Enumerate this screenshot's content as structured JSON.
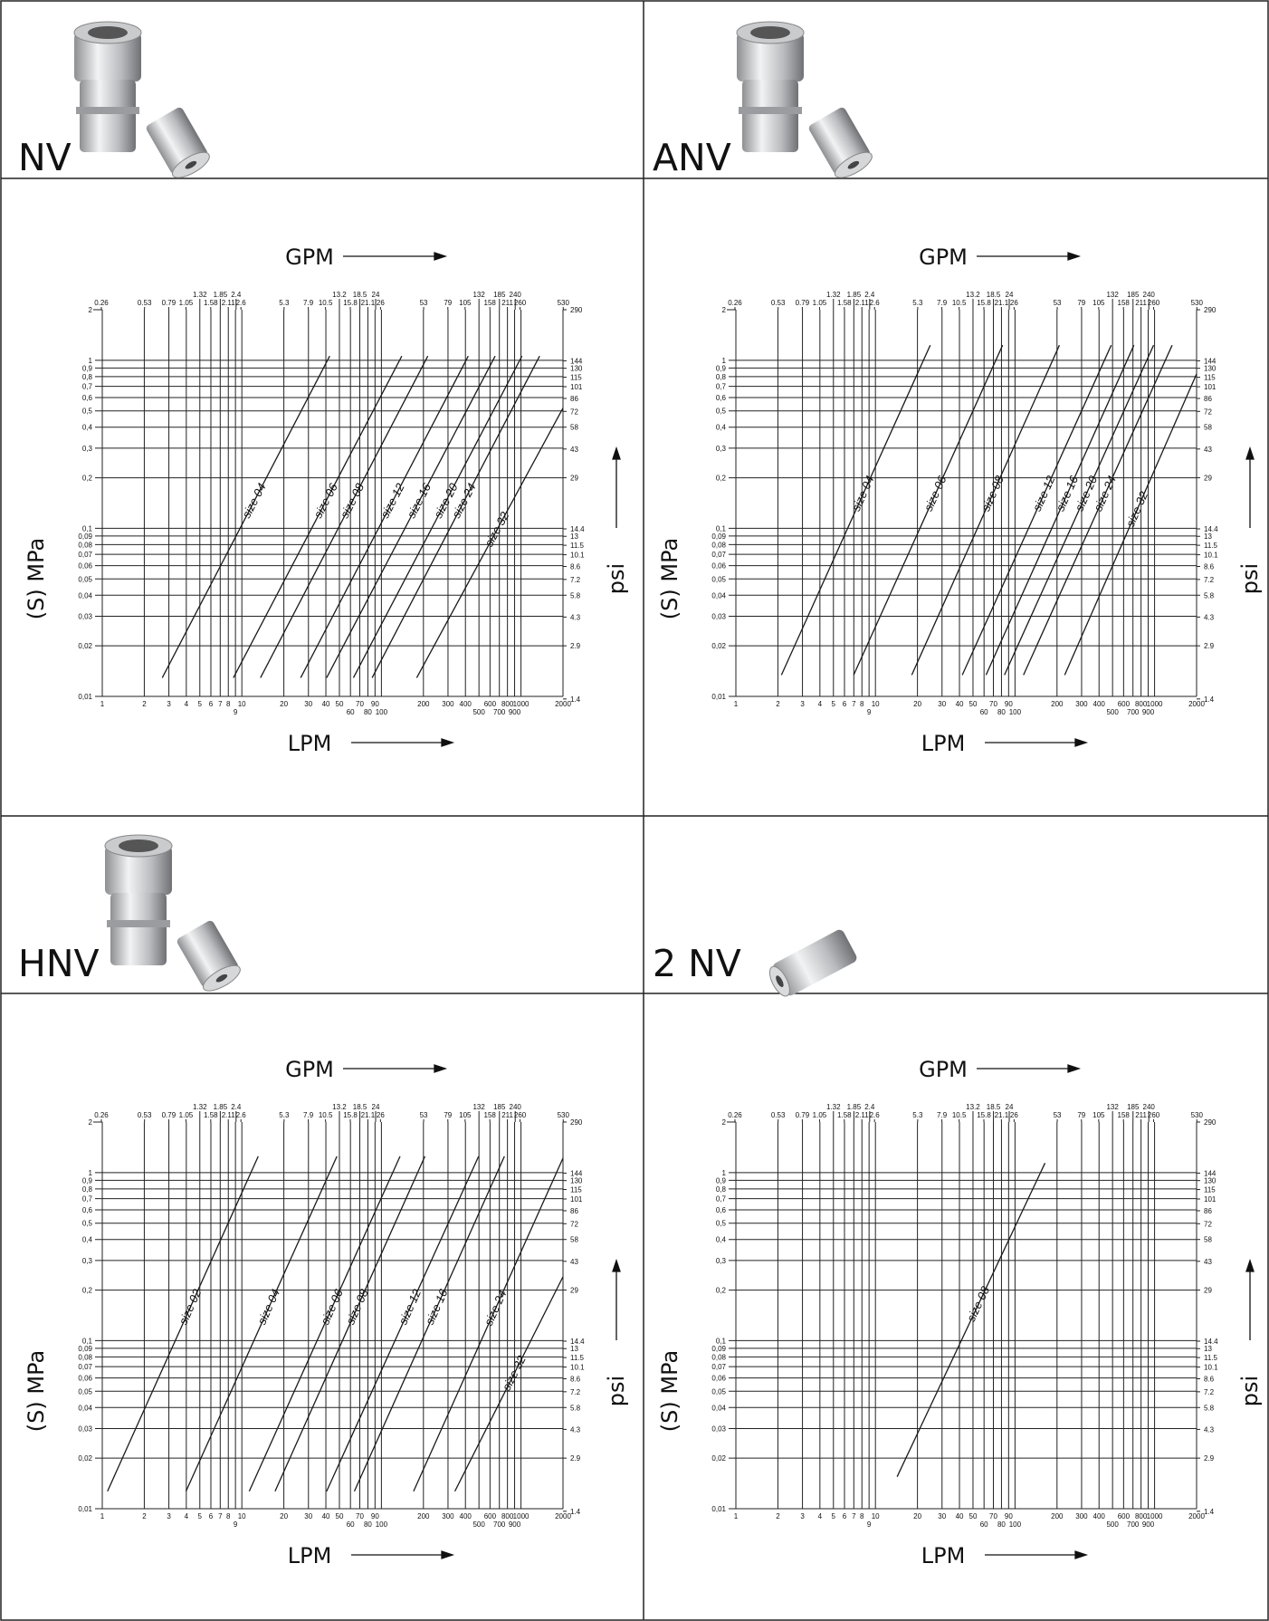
{
  "chart_data": [
    {
      "type": "line",
      "title": "NV",
      "x_label": "LPM",
      "x2_label": "GPM",
      "y_label": "(S) MPa",
      "y2_label": "psi",
      "log_x": true,
      "log_y": true,
      "grid": true,
      "color": "#1a1a1a",
      "xlim": [
        1,
        2000
      ],
      "xticks": [
        1,
        2,
        3,
        4,
        5,
        6,
        7,
        8,
        9,
        10,
        20,
        30,
        40,
        50,
        60,
        70,
        80,
        90,
        100,
        200,
        300,
        400,
        500,
        600,
        700,
        800,
        900,
        1000,
        2000
      ],
      "x2lim": [
        0.264,
        528
      ],
      "x2ticks": [
        0.26,
        0.53,
        0.79,
        1.05,
        1.32,
        1.58,
        1.85,
        2.11,
        2.4,
        2.6,
        5.3,
        7.9,
        10.5,
        13.2,
        15.8,
        18.5,
        21.1,
        24,
        26,
        53,
        79,
        105,
        132,
        158,
        185,
        211,
        240,
        260,
        530
      ],
      "ylim": [
        0.01,
        2
      ],
      "yticks": [
        2,
        1,
        {
          "value": 0.9,
          "label": "0,9"
        },
        {
          "value": 0.8,
          "label": "0,8"
        },
        {
          "value": 0.7,
          "label": "0,7"
        },
        {
          "value": 0.6,
          "label": "0,6"
        },
        {
          "value": 0.5,
          "label": "0,5"
        },
        {
          "value": 0.4,
          "label": "0,4"
        },
        {
          "value": 0.3,
          "label": "0,3"
        },
        {
          "value": 0.2,
          "label": "0,2"
        },
        {
          "value": 0.1,
          "label": "0,1"
        },
        {
          "value": 0.09,
          "label": "0,09"
        },
        {
          "value": 0.08,
          "label": "0,08"
        },
        {
          "value": 0.07,
          "label": "0,07"
        },
        {
          "value": 0.06,
          "label": "0,06"
        },
        {
          "value": 0.05,
          "label": "0,05"
        },
        {
          "value": 0.04,
          "label": "0,04"
        },
        {
          "value": 0.03,
          "label": "0,03"
        },
        {
          "value": 0.02,
          "label": "0,02"
        },
        {
          "value": 0.01,
          "label": "0,01"
        }
      ],
      "y2lim": [
        1.45,
        290
      ],
      "y2ticks": [
        290,
        144,
        130,
        115,
        101,
        86,
        72,
        58,
        43,
        29,
        14.4,
        13,
        11.5,
        10.1,
        8.6,
        7.2,
        5.8,
        4.3,
        2.9,
        1.4
      ],
      "series": [
        {
          "name": "size 04",
          "x": [
            2.69,
            42.6
          ],
          "values": [
            0.0129,
            1.06
          ]
        },
        {
          "name": "size 06",
          "x": [
            8.7,
            140
          ],
          "values": [
            0.0129,
            1.06
          ]
        },
        {
          "name": "size 08",
          "x": [
            13.6,
            215
          ],
          "values": [
            0.0129,
            1.06
          ]
        },
        {
          "name": "size 12",
          "x": [
            26.4,
            419
          ],
          "values": [
            0.0129,
            1.06
          ]
        },
        {
          "name": "size 16",
          "x": [
            40.5,
            653
          ],
          "values": [
            0.0129,
            1.06
          ]
        },
        {
          "name": "size 20",
          "x": [
            63,
            1016
          ],
          "values": [
            0.0129,
            1.06
          ]
        },
        {
          "name": "size 24",
          "x": [
            85.8,
            1360
          ],
          "values": [
            0.0129,
            1.06
          ]
        },
        {
          "name": "size 32",
          "x": [
            179,
            2000
          ],
          "values": [
            0.0129,
            0.52
          ]
        }
      ]
    },
    {
      "type": "line",
      "title": "ANV",
      "x_label": "LPM",
      "x2_label": "GPM",
      "y_label": "(S) MPa",
      "y2_label": "psi",
      "log_x": true,
      "log_y": true,
      "grid": true,
      "color": "#1a1a1a",
      "xlim": [
        1,
        2000
      ],
      "xticks": [
        1,
        2,
        3,
        4,
        5,
        6,
        7,
        8,
        9,
        10,
        20,
        30,
        40,
        50,
        60,
        70,
        80,
        90,
        100,
        200,
        300,
        400,
        500,
        600,
        700,
        800,
        900,
        1000,
        2000
      ],
      "x2lim": [
        0.264,
        528
      ],
      "x2ticks": [
        0.26,
        0.53,
        0.79,
        1.05,
        1.32,
        1.58,
        1.85,
        2.11,
        2.4,
        2.6,
        5.3,
        7.9,
        10.5,
        13.2,
        15.8,
        18.5,
        21.1,
        24,
        26,
        53,
        79,
        105,
        132,
        158,
        185,
        211,
        240,
        260,
        530
      ],
      "ylim": [
        0.01,
        2
      ],
      "yticks": [
        2,
        1,
        {
          "value": 0.9,
          "label": "0,9"
        },
        {
          "value": 0.8,
          "label": "0,8"
        },
        {
          "value": 0.7,
          "label": "0,7"
        },
        {
          "value": 0.6,
          "label": "0,6"
        },
        {
          "value": 0.5,
          "label": "0,5"
        },
        {
          "value": 0.4,
          "label": "0,4"
        },
        {
          "value": 0.3,
          "label": "0,3"
        },
        {
          "value": 0.2,
          "label": "0,2"
        },
        {
          "value": 0.1,
          "label": "0,1"
        },
        {
          "value": 0.09,
          "label": "0,09"
        },
        {
          "value": 0.08,
          "label": "0,08"
        },
        {
          "value": 0.07,
          "label": "0,07"
        },
        {
          "value": 0.06,
          "label": "0,06"
        },
        {
          "value": 0.05,
          "label": "0,05"
        },
        {
          "value": 0.04,
          "label": "0,04"
        },
        {
          "value": 0.03,
          "label": "0,03"
        },
        {
          "value": 0.02,
          "label": "0,02"
        },
        {
          "value": 0.01,
          "label": "0,01"
        }
      ],
      "y2lim": [
        1.45,
        290
      ],
      "y2ticks": [
        290,
        144,
        130,
        115,
        101,
        86,
        72,
        58,
        43,
        29,
        14.4,
        13,
        11.5,
        10.1,
        8.6,
        7.2,
        5.8,
        4.3,
        2.9,
        1.4
      ],
      "series": [
        {
          "name": "size 04",
          "x": [
            2.12,
            24.7
          ],
          "values": [
            0.0134,
            1.23
          ]
        },
        {
          "name": "size 06",
          "x": [
            6.98,
            81.5
          ],
          "values": [
            0.0134,
            1.23
          ]
        },
        {
          "name": "size 08",
          "x": [
            18.2,
            208
          ],
          "values": [
            0.0134,
            1.23
          ]
        },
        {
          "name": "size 12",
          "x": [
            41.9,
            489
          ],
          "values": [
            0.0134,
            1.23
          ]
        },
        {
          "name": "size 16",
          "x": [
            62,
            711
          ],
          "values": [
            0.0134,
            1.23
          ]
        },
        {
          "name": "size 20",
          "x": [
            84,
            984
          ],
          "values": [
            0.0134,
            1.23
          ]
        },
        {
          "name": "size 24",
          "x": [
            115,
            1336
          ],
          "values": [
            0.0134,
            1.23
          ]
        },
        {
          "name": "size 32",
          "x": [
            227,
            2000
          ],
          "values": [
            0.0134,
            0.83
          ]
        }
      ]
    },
    {
      "type": "line",
      "title": "HNV",
      "x_label": "LPM",
      "x2_label": "GPM",
      "y_label": "(S) MPa",
      "y2_label": "psi",
      "log_x": true,
      "log_y": true,
      "grid": true,
      "color": "#1a1a1a",
      "xlim": [
        1,
        2000
      ],
      "xticks": [
        1,
        2,
        3,
        4,
        5,
        6,
        7,
        8,
        9,
        10,
        20,
        30,
        40,
        50,
        60,
        70,
        80,
        90,
        100,
        200,
        300,
        400,
        500,
        600,
        700,
        800,
        900,
        1000,
        2000
      ],
      "x2lim": [
        0.264,
        528
      ],
      "x2ticks": [
        0.26,
        0.53,
        0.79,
        1.05,
        1.32,
        1.58,
        1.85,
        2.11,
        2.4,
        2.6,
        5.3,
        7.9,
        10.5,
        13.2,
        15.8,
        18.5,
        21.1,
        24,
        26,
        53,
        79,
        105,
        132,
        158,
        185,
        211,
        240,
        260,
        530
      ],
      "ylim": [
        0.01,
        2
      ],
      "yticks": [
        2,
        1,
        {
          "value": 0.9,
          "label": "0,9"
        },
        {
          "value": 0.8,
          "label": "0,8"
        },
        {
          "value": 0.7,
          "label": "0,7"
        },
        {
          "value": 0.6,
          "label": "0,6"
        },
        {
          "value": 0.5,
          "label": "0,5"
        },
        {
          "value": 0.4,
          "label": "0,4"
        },
        {
          "value": 0.3,
          "label": "0,3"
        },
        {
          "value": 0.2,
          "label": "0,2"
        },
        {
          "value": 0.1,
          "label": "0,1"
        },
        {
          "value": 0.09,
          "label": "0,09"
        },
        {
          "value": 0.08,
          "label": "0,08"
        },
        {
          "value": 0.07,
          "label": "0,07"
        },
        {
          "value": 0.06,
          "label": "0,06"
        },
        {
          "value": 0.05,
          "label": "0,05"
        },
        {
          "value": 0.04,
          "label": "0,04"
        },
        {
          "value": 0.03,
          "label": "0,03"
        },
        {
          "value": 0.02,
          "label": "0,02"
        },
        {
          "value": 0.01,
          "label": "0,01"
        }
      ],
      "y2lim": [
        1.45,
        290
      ],
      "y2ticks": [
        290,
        144,
        130,
        115,
        101,
        86,
        72,
        58,
        43,
        29,
        14.4,
        13,
        11.5,
        10.1,
        8.6,
        7.2,
        5.8,
        4.3,
        2.9,
        1.4
      ],
      "series": [
        {
          "name": "size 02",
          "x": [
            1.09,
            13.1
          ],
          "values": [
            0.0127,
            1.25
          ]
        },
        {
          "name": "size 04",
          "x": [
            3.98,
            48
          ],
          "values": [
            0.0127,
            1.25
          ]
        },
        {
          "name": "size 06",
          "x": [
            11.3,
            136
          ],
          "values": [
            0.0127,
            1.25
          ]
        },
        {
          "name": "size 08",
          "x": [
            17.3,
            205
          ],
          "values": [
            0.0127,
            1.25
          ]
        },
        {
          "name": "size 12",
          "x": [
            40.5,
            497
          ],
          "values": [
            0.0127,
            1.25
          ]
        },
        {
          "name": "size 16",
          "x": [
            64,
            761
          ],
          "values": [
            0.0127,
            1.25
          ]
        },
        {
          "name": "size 24",
          "x": [
            170,
            2000
          ],
          "values": [
            0.0127,
            1.22
          ]
        },
        {
          "name": "size 32",
          "x": [
            336,
            2000
          ],
          "values": [
            0.0127,
            0.24
          ]
        }
      ]
    },
    {
      "type": "line",
      "title": "2 NV",
      "x_label": "LPM",
      "x2_label": "GPM",
      "y_label": "(S) MPa",
      "y2_label": "psi",
      "log_x": true,
      "log_y": true,
      "grid": true,
      "color": "#1a1a1a",
      "xlim": [
        1,
        2000
      ],
      "xticks": [
        1,
        2,
        3,
        4,
        5,
        6,
        7,
        8,
        9,
        10,
        20,
        30,
        40,
        50,
        60,
        70,
        80,
        90,
        100,
        200,
        300,
        400,
        500,
        600,
        700,
        800,
        900,
        1000,
        2000
      ],
      "x2lim": [
        0.264,
        528
      ],
      "x2ticks": [
        0.26,
        0.53,
        0.79,
        1.05,
        1.32,
        1.58,
        1.85,
        2.11,
        2.4,
        2.6,
        5.3,
        7.9,
        10.5,
        13.2,
        15.8,
        18.5,
        21.1,
        24,
        26,
        53,
        79,
        105,
        132,
        158,
        185,
        211,
        240,
        260,
        530
      ],
      "ylim": [
        0.01,
        2
      ],
      "yticks": [
        2,
        1,
        {
          "value": 0.9,
          "label": "0,9"
        },
        {
          "value": 0.8,
          "label": "0,8"
        },
        {
          "value": 0.7,
          "label": "0,7"
        },
        {
          "value": 0.6,
          "label": "0,6"
        },
        {
          "value": 0.5,
          "label": "0,5"
        },
        {
          "value": 0.4,
          "label": "0,4"
        },
        {
          "value": 0.3,
          "label": "0,3"
        },
        {
          "value": 0.2,
          "label": "0,2"
        },
        {
          "value": 0.1,
          "label": "0,1"
        },
        {
          "value": 0.09,
          "label": "0,09"
        },
        {
          "value": 0.08,
          "label": "0,08"
        },
        {
          "value": 0.07,
          "label": "0,07"
        },
        {
          "value": 0.06,
          "label": "0,06"
        },
        {
          "value": 0.05,
          "label": "0,05"
        },
        {
          "value": 0.04,
          "label": "0,04"
        },
        {
          "value": 0.03,
          "label": "0,03"
        },
        {
          "value": 0.02,
          "label": "0,02"
        },
        {
          "value": 0.01,
          "label": "0,01"
        }
      ],
      "y2lim": [
        1.45,
        290
      ],
      "y2ticks": [
        290,
        144,
        130,
        115,
        101,
        86,
        72,
        58,
        43,
        29,
        14.4,
        13,
        11.5,
        10.1,
        8.6,
        7.2,
        5.8,
        4.3,
        2.9,
        1.4
      ],
      "series": [
        {
          "name": "size 08",
          "x": [
            14.3,
            164
          ],
          "values": [
            0.0155,
            1.14
          ]
        }
      ]
    }
  ]
}
